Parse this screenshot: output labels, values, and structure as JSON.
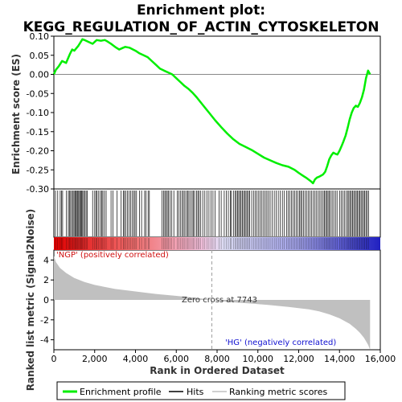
{
  "title_line1": "Enrichment plot:",
  "title_line2": "KEGG_REGULATION_OF_ACTIN_CYTOSKELETON",
  "colors": {
    "es_line": "#00ee00",
    "hit_line": "#000000",
    "metric_fill": "#c0c0c0",
    "pos_label": "#d01010",
    "neg_label": "#1010d0",
    "zero_line": "#a0a0a0"
  },
  "legend": {
    "es": "Enrichment profile",
    "hits": "Hits",
    "metric": "Ranking metric scores"
  },
  "chart_data": [
    {
      "type": "line",
      "panel": "enrichment_profile",
      "ylabel": "Enrichment score (ES)",
      "ylim": [
        -0.3,
        0.1
      ],
      "yticks": [
        "0.10",
        "0.05",
        "0.00",
        "-0.05",
        "-0.10",
        "-0.15",
        "-0.20",
        "-0.25",
        "-0.30"
      ],
      "ytick_values": [
        0.1,
        0.05,
        0.0,
        -0.05,
        -0.1,
        -0.15,
        -0.2,
        -0.25,
        -0.3
      ],
      "xlim": [
        0,
        16000
      ],
      "grid": false,
      "x": [
        0,
        100,
        250,
        400,
        600,
        800,
        900,
        1000,
        1200,
        1400,
        1500,
        1700,
        1900,
        2000,
        2100,
        2300,
        2500,
        2600,
        2800,
        3000,
        3200,
        3400,
        3500,
        3700,
        4000,
        4200,
        4400,
        4600,
        4800,
        5000,
        5200,
        5400,
        5600,
        5800,
        6000,
        6200,
        6400,
        6600,
        6800,
        7000,
        7300,
        7600,
        7900,
        8200,
        8500,
        8800,
        9100,
        9400,
        9700,
        10000,
        10300,
        10600,
        10900,
        11200,
        11500,
        11800,
        12000,
        12200,
        12400,
        12600,
        12700,
        12800,
        12900,
        13000,
        13100,
        13200,
        13300,
        13400,
        13500,
        13600,
        13700,
        13800,
        13900,
        14000,
        14100,
        14200,
        14300,
        14400,
        14500,
        14600,
        14700,
        14800,
        14900,
        15000,
        15100,
        15200,
        15300,
        15400,
        15500
      ],
      "y": [
        0.0,
        0.012,
        0.022,
        0.035,
        0.03,
        0.055,
        0.065,
        0.062,
        0.075,
        0.092,
        0.09,
        0.085,
        0.08,
        0.085,
        0.09,
        0.088,
        0.09,
        0.087,
        0.08,
        0.072,
        0.065,
        0.07,
        0.072,
        0.07,
        0.062,
        0.055,
        0.05,
        0.045,
        0.035,
        0.025,
        0.015,
        0.01,
        0.005,
        0.0,
        -0.01,
        -0.02,
        -0.03,
        -0.038,
        -0.048,
        -0.06,
        -0.08,
        -0.1,
        -0.12,
        -0.138,
        -0.155,
        -0.17,
        -0.182,
        -0.19,
        -0.198,
        -0.208,
        -0.218,
        -0.225,
        -0.232,
        -0.238,
        -0.242,
        -0.25,
        -0.258,
        -0.265,
        -0.272,
        -0.28,
        -0.285,
        -0.275,
        -0.27,
        -0.268,
        -0.265,
        -0.262,
        -0.255,
        -0.24,
        -0.222,
        -0.212,
        -0.205,
        -0.208,
        -0.21,
        -0.2,
        -0.188,
        -0.175,
        -0.16,
        -0.14,
        -0.118,
        -0.1,
        -0.088,
        -0.082,
        -0.085,
        -0.075,
        -0.06,
        -0.04,
        -0.01,
        0.01,
        0.0
      ]
    },
    {
      "type": "area",
      "panel": "ranked_list_metric",
      "ylabel": "Ranked list metric (Signal2Noise)",
      "xlabel": "Rank in Ordered Dataset",
      "ylim": [
        -5,
        5
      ],
      "yticks": [
        "4",
        "2",
        "0",
        "-2",
        "-4"
      ],
      "ytick_values": [
        4,
        2,
        0,
        -2,
        -4
      ],
      "xlim": [
        0,
        16000
      ],
      "xticks": [
        "0",
        "2,000",
        "4,000",
        "6,000",
        "8,000",
        "10,000",
        "12,000",
        "14,000",
        "16,000"
      ],
      "xtick_values": [
        0,
        2000,
        4000,
        6000,
        8000,
        10000,
        12000,
        14000,
        16000
      ],
      "x": [
        0,
        100,
        300,
        600,
        1000,
        1500,
        2000,
        3000,
        4000,
        5000,
        6000,
        7000,
        7743,
        8500,
        9500,
        10500,
        11500,
        12500,
        13000,
        13500,
        14000,
        14500,
        14800,
        15000,
        15200,
        15400,
        15500
      ],
      "y": [
        4.4,
        3.8,
        3.2,
        2.7,
        2.2,
        1.8,
        1.5,
        1.1,
        0.85,
        0.6,
        0.4,
        0.2,
        0.0,
        -0.2,
        -0.35,
        -0.5,
        -0.7,
        -0.95,
        -1.15,
        -1.45,
        -1.85,
        -2.4,
        -2.9,
        -3.3,
        -3.8,
        -4.5,
        -5.0
      ],
      "zero_cross_label": "Zero cross at 7743",
      "zero_cross": 7743,
      "pos_label": "'NGP' (positively correlated)",
      "neg_label": "'HG' (negatively correlated)"
    }
  ],
  "hits": [
    80,
    190,
    310,
    370,
    430,
    620,
    710,
    760,
    820,
    880,
    940,
    990,
    1040,
    1090,
    1140,
    1180,
    1220,
    1270,
    1320,
    1360,
    1410,
    1460,
    1520,
    1580,
    1640,
    1900,
    2000,
    2060,
    2120,
    2200,
    2280,
    2340,
    2400,
    2480,
    2560,
    2800,
    2900,
    3100,
    3300,
    3400,
    3460,
    3520,
    3600,
    3680,
    3760,
    3840,
    3920,
    3980,
    4050,
    4200,
    4300,
    4450,
    4520,
    4620,
    4680,
    5300,
    5380,
    5440,
    5500,
    5560,
    5620,
    5700,
    5780,
    5880,
    6050,
    6120,
    6200,
    6280,
    6350,
    6420,
    6500,
    6560,
    6620,
    6700,
    6780,
    6840,
    6900,
    7000,
    7060,
    7120,
    7200,
    7300,
    7400,
    7500,
    7600,
    7700,
    7800,
    7900,
    8100,
    8200,
    8350,
    8450,
    8550,
    8650,
    8700,
    8800,
    8880,
    8940,
    9000,
    9060,
    9120,
    9180,
    9240,
    9300,
    9360,
    9420,
    9480,
    9540,
    9600,
    9700,
    9800,
    9880,
    9960,
    10040,
    10120,
    10200,
    10280,
    10360,
    10440,
    10520,
    10600,
    10700,
    10800,
    10900,
    11000,
    11100,
    11200,
    11300,
    11400,
    11480,
    11560,
    11640,
    11720,
    11800,
    11880,
    11960,
    12040,
    12100,
    12160,
    12240,
    12320,
    12400,
    12480,
    12560,
    12640,
    12720,
    12800,
    12880,
    12960,
    13040,
    13120,
    13200,
    13260,
    13320,
    13380,
    13440,
    13500,
    13560,
    13640,
    13720,
    13800,
    13880,
    14000,
    14080,
    14160,
    14240,
    14320,
    14400,
    14460,
    14520,
    14580,
    14640,
    14700,
    14760,
    14820,
    14880,
    14940,
    15000,
    15060,
    15120,
    15180,
    15240,
    15300,
    15360,
    15420
  ]
}
